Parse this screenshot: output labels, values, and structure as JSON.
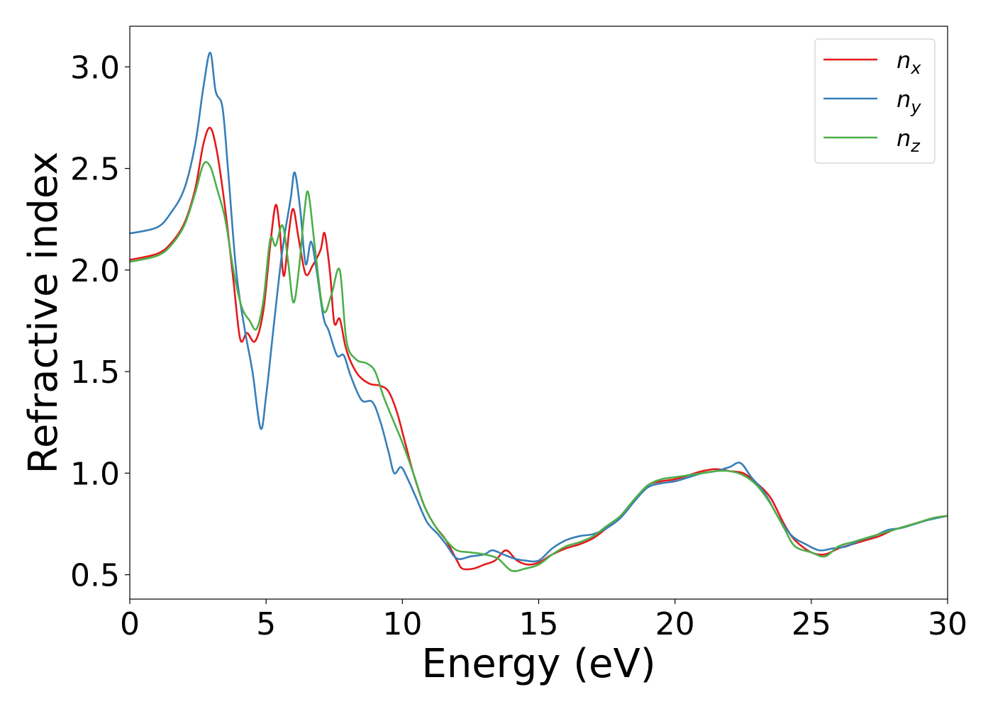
{
  "chart_data": {
    "type": "line",
    "title": "",
    "xlabel": "Energy (eV)",
    "ylabel": "Refractive index",
    "xlim": [
      0,
      30
    ],
    "ylim": [
      0.38,
      3.2
    ],
    "xticks": [
      0,
      5,
      10,
      15,
      20,
      25,
      30
    ],
    "xtick_labels": [
      "0",
      "5",
      "10",
      "15",
      "20",
      "25",
      "30"
    ],
    "yticks": [
      0.5,
      1.0,
      1.5,
      2.0,
      2.5,
      3.0
    ],
    "ytick_labels": [
      "0.5",
      "1.0",
      "1.5",
      "2.0",
      "2.5",
      "3.0"
    ],
    "grid": false,
    "legend_position": "top-right",
    "series": [
      {
        "name": "n",
        "subscript": "x",
        "color": "#e41a1c",
        "points": [
          [
            0.0,
            2.05
          ],
          [
            1.0,
            2.08
          ],
          [
            1.5,
            2.13
          ],
          [
            2.0,
            2.23
          ],
          [
            2.4,
            2.4
          ],
          [
            2.7,
            2.62
          ],
          [
            2.95,
            2.7
          ],
          [
            3.2,
            2.58
          ],
          [
            3.5,
            2.3
          ],
          [
            3.8,
            1.95
          ],
          [
            4.05,
            1.66
          ],
          [
            4.3,
            1.69
          ],
          [
            4.6,
            1.65
          ],
          [
            4.9,
            1.8
          ],
          [
            5.15,
            2.12
          ],
          [
            5.35,
            2.32
          ],
          [
            5.5,
            2.2
          ],
          [
            5.65,
            1.97
          ],
          [
            5.85,
            2.2
          ],
          [
            6.0,
            2.3
          ],
          [
            6.2,
            2.15
          ],
          [
            6.45,
            1.98
          ],
          [
            6.7,
            2.02
          ],
          [
            7.0,
            2.1
          ],
          [
            7.15,
            2.18
          ],
          [
            7.35,
            1.98
          ],
          [
            7.5,
            1.74
          ],
          [
            7.7,
            1.76
          ],
          [
            7.9,
            1.63
          ],
          [
            8.1,
            1.55
          ],
          [
            8.4,
            1.48
          ],
          [
            8.8,
            1.44
          ],
          [
            9.2,
            1.43
          ],
          [
            9.5,
            1.4
          ],
          [
            9.8,
            1.3
          ],
          [
            10.1,
            1.15
          ],
          [
            10.4,
            1.0
          ],
          [
            10.8,
            0.84
          ],
          [
            11.2,
            0.74
          ],
          [
            11.6,
            0.67
          ],
          [
            12.0,
            0.57
          ],
          [
            12.2,
            0.53
          ],
          [
            12.6,
            0.53
          ],
          [
            13.0,
            0.55
          ],
          [
            13.4,
            0.57
          ],
          [
            13.8,
            0.62
          ],
          [
            14.2,
            0.57
          ],
          [
            14.6,
            0.55
          ],
          [
            15.0,
            0.56
          ],
          [
            15.5,
            0.6
          ],
          [
            16.0,
            0.63
          ],
          [
            16.5,
            0.65
          ],
          [
            17.0,
            0.68
          ],
          [
            17.5,
            0.73
          ],
          [
            18.0,
            0.78
          ],
          [
            18.5,
            0.86
          ],
          [
            19.0,
            0.94
          ],
          [
            19.5,
            0.96
          ],
          [
            20.0,
            0.97
          ],
          [
            20.5,
            0.99
          ],
          [
            21.0,
            1.01
          ],
          [
            21.5,
            1.02
          ],
          [
            22.0,
            1.01
          ],
          [
            22.5,
            1.0
          ],
          [
            23.0,
            0.95
          ],
          [
            23.5,
            0.88
          ],
          [
            24.0,
            0.75
          ],
          [
            24.4,
            0.67
          ],
          [
            25.0,
            0.61
          ],
          [
            25.5,
            0.6
          ],
          [
            26.0,
            0.63
          ],
          [
            26.5,
            0.65
          ],
          [
            27.0,
            0.67
          ],
          [
            27.5,
            0.69
          ],
          [
            28.0,
            0.72
          ],
          [
            28.5,
            0.74
          ],
          [
            29.0,
            0.76
          ],
          [
            29.5,
            0.78
          ],
          [
            30.0,
            0.79
          ]
        ]
      },
      {
        "name": "n",
        "subscript": "y",
        "color": "#377eb8",
        "points": [
          [
            0.0,
            2.18
          ],
          [
            1.0,
            2.21
          ],
          [
            1.5,
            2.28
          ],
          [
            2.0,
            2.4
          ],
          [
            2.4,
            2.62
          ],
          [
            2.7,
            2.9
          ],
          [
            2.95,
            3.07
          ],
          [
            3.15,
            2.88
          ],
          [
            3.4,
            2.8
          ],
          [
            3.6,
            2.5
          ],
          [
            3.9,
            2.0
          ],
          [
            4.2,
            1.72
          ],
          [
            4.5,
            1.5
          ],
          [
            4.8,
            1.22
          ],
          [
            5.0,
            1.38
          ],
          [
            5.3,
            1.75
          ],
          [
            5.6,
            2.1
          ],
          [
            5.9,
            2.35
          ],
          [
            6.05,
            2.48
          ],
          [
            6.25,
            2.3
          ],
          [
            6.45,
            2.03
          ],
          [
            6.65,
            2.14
          ],
          [
            6.85,
            2.0
          ],
          [
            7.1,
            1.77
          ],
          [
            7.3,
            1.7
          ],
          [
            7.6,
            1.58
          ],
          [
            7.85,
            1.58
          ],
          [
            8.1,
            1.48
          ],
          [
            8.5,
            1.36
          ],
          [
            8.9,
            1.35
          ],
          [
            9.2,
            1.25
          ],
          [
            9.5,
            1.1
          ],
          [
            9.7,
            1.0
          ],
          [
            9.95,
            1.03
          ],
          [
            10.2,
            0.97
          ],
          [
            10.5,
            0.88
          ],
          [
            10.9,
            0.76
          ],
          [
            11.3,
            0.7
          ],
          [
            11.6,
            0.65
          ],
          [
            12.0,
            0.58
          ],
          [
            12.5,
            0.59
          ],
          [
            13.0,
            0.6
          ],
          [
            13.3,
            0.62
          ],
          [
            13.7,
            0.6
          ],
          [
            14.1,
            0.58
          ],
          [
            14.5,
            0.57
          ],
          [
            15.0,
            0.57
          ],
          [
            15.5,
            0.63
          ],
          [
            16.0,
            0.67
          ],
          [
            16.5,
            0.69
          ],
          [
            17.0,
            0.7
          ],
          [
            17.5,
            0.73
          ],
          [
            18.0,
            0.78
          ],
          [
            18.5,
            0.86
          ],
          [
            19.0,
            0.93
          ],
          [
            19.5,
            0.95
          ],
          [
            20.0,
            0.96
          ],
          [
            20.5,
            0.98
          ],
          [
            21.0,
            1.0
          ],
          [
            21.5,
            1.01
          ],
          [
            22.0,
            1.03
          ],
          [
            22.4,
            1.05
          ],
          [
            22.8,
            0.98
          ],
          [
            23.3,
            0.9
          ],
          [
            23.8,
            0.78
          ],
          [
            24.3,
            0.69
          ],
          [
            24.8,
            0.65
          ],
          [
            25.3,
            0.62
          ],
          [
            25.8,
            0.63
          ],
          [
            26.3,
            0.64
          ],
          [
            26.8,
            0.67
          ],
          [
            27.3,
            0.69
          ],
          [
            27.8,
            0.72
          ],
          [
            28.3,
            0.73
          ],
          [
            28.8,
            0.75
          ],
          [
            29.3,
            0.77
          ],
          [
            30.0,
            0.79
          ]
        ]
      },
      {
        "name": "n",
        "subscript": "z",
        "color": "#4daf4a",
        "points": [
          [
            0.0,
            2.04
          ],
          [
            1.0,
            2.07
          ],
          [
            1.5,
            2.12
          ],
          [
            2.0,
            2.22
          ],
          [
            2.4,
            2.38
          ],
          [
            2.7,
            2.52
          ],
          [
            2.95,
            2.51
          ],
          [
            3.2,
            2.4
          ],
          [
            3.5,
            2.25
          ],
          [
            3.8,
            2.0
          ],
          [
            4.1,
            1.82
          ],
          [
            4.4,
            1.75
          ],
          [
            4.65,
            1.71
          ],
          [
            4.9,
            1.85
          ],
          [
            5.15,
            2.15
          ],
          [
            5.35,
            2.12
          ],
          [
            5.6,
            2.22
          ],
          [
            5.8,
            2.05
          ],
          [
            6.0,
            1.84
          ],
          [
            6.2,
            2.0
          ],
          [
            6.4,
            2.28
          ],
          [
            6.55,
            2.38
          ],
          [
            6.8,
            2.1
          ],
          [
            7.1,
            1.8
          ],
          [
            7.4,
            1.88
          ],
          [
            7.7,
            2.0
          ],
          [
            7.95,
            1.65
          ],
          [
            8.3,
            1.56
          ],
          [
            8.7,
            1.54
          ],
          [
            9.0,
            1.5
          ],
          [
            9.3,
            1.38
          ],
          [
            9.6,
            1.28
          ],
          [
            10.0,
            1.15
          ],
          [
            10.4,
            1.0
          ],
          [
            10.8,
            0.84
          ],
          [
            11.2,
            0.74
          ],
          [
            11.6,
            0.67
          ],
          [
            12.0,
            0.62
          ],
          [
            12.5,
            0.61
          ],
          [
            13.0,
            0.6
          ],
          [
            13.5,
            0.58
          ],
          [
            14.0,
            0.52
          ],
          [
            14.5,
            0.53
          ],
          [
            15.0,
            0.55
          ],
          [
            15.5,
            0.6
          ],
          [
            16.0,
            0.64
          ],
          [
            16.5,
            0.66
          ],
          [
            17.0,
            0.69
          ],
          [
            17.5,
            0.74
          ],
          [
            18.0,
            0.79
          ],
          [
            18.5,
            0.87
          ],
          [
            19.0,
            0.94
          ],
          [
            19.5,
            0.97
          ],
          [
            20.0,
            0.98
          ],
          [
            20.5,
            0.99
          ],
          [
            21.0,
            1.0
          ],
          [
            21.5,
            1.01
          ],
          [
            22.0,
            1.01
          ],
          [
            22.5,
            0.99
          ],
          [
            23.0,
            0.94
          ],
          [
            23.5,
            0.85
          ],
          [
            24.0,
            0.73
          ],
          [
            24.4,
            0.64
          ],
          [
            25.0,
            0.61
          ],
          [
            25.5,
            0.59
          ],
          [
            26.0,
            0.64
          ],
          [
            26.5,
            0.66
          ],
          [
            27.0,
            0.68
          ],
          [
            27.5,
            0.7
          ],
          [
            28.0,
            0.72
          ],
          [
            28.5,
            0.74
          ],
          [
            29.0,
            0.76
          ],
          [
            29.5,
            0.78
          ],
          [
            30.0,
            0.79
          ]
        ]
      }
    ]
  }
}
